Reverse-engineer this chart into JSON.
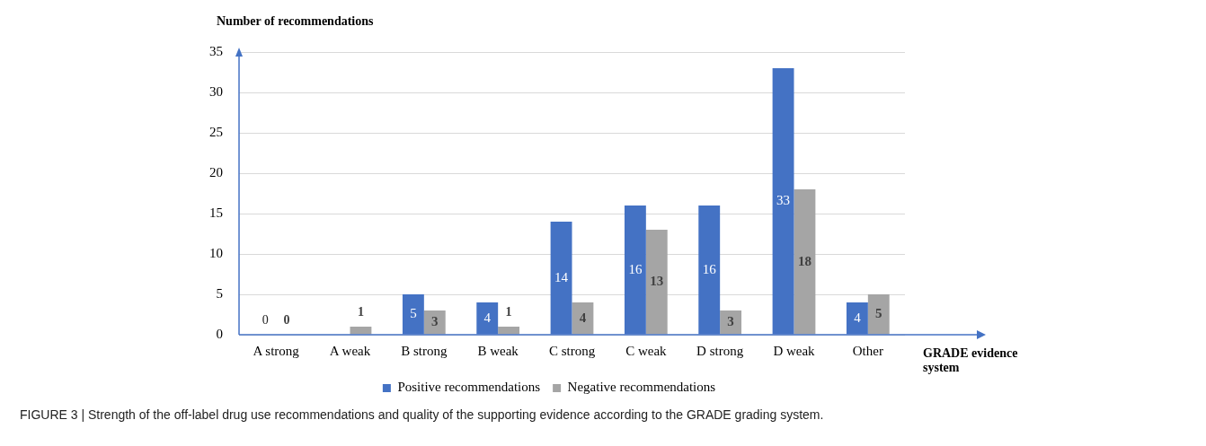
{
  "chart_data": {
    "type": "bar",
    "ylabel": "Number of recommendations",
    "xlabel": "GRADE evidence system",
    "categories": [
      "A strong",
      "A weak",
      "B strong",
      "B weak",
      "C strong",
      "C weak",
      "D strong",
      "D weak",
      "Other"
    ],
    "series": [
      {
        "name": "Positive recommendations",
        "color": "#4472c4",
        "values": [
          0,
          null,
          5,
          4,
          14,
          16,
          16,
          33,
          4
        ]
      },
      {
        "name": "Negative recommendations",
        "color": "#a5a5a5",
        "values": [
          0,
          1,
          3,
          1,
          4,
          13,
          3,
          18,
          5
        ]
      }
    ],
    "ylim": [
      0,
      35
    ],
    "yticks": [
      0,
      5,
      10,
      15,
      20,
      25,
      30,
      35
    ],
    "grid": "y",
    "legend": "bottom",
    "data_labels": true,
    "annotations": [
      "FIGURE 3 | Strength of the off-label drug use recommendations and quality of the supporting evidence according to the GRADE grading system."
    ]
  }
}
